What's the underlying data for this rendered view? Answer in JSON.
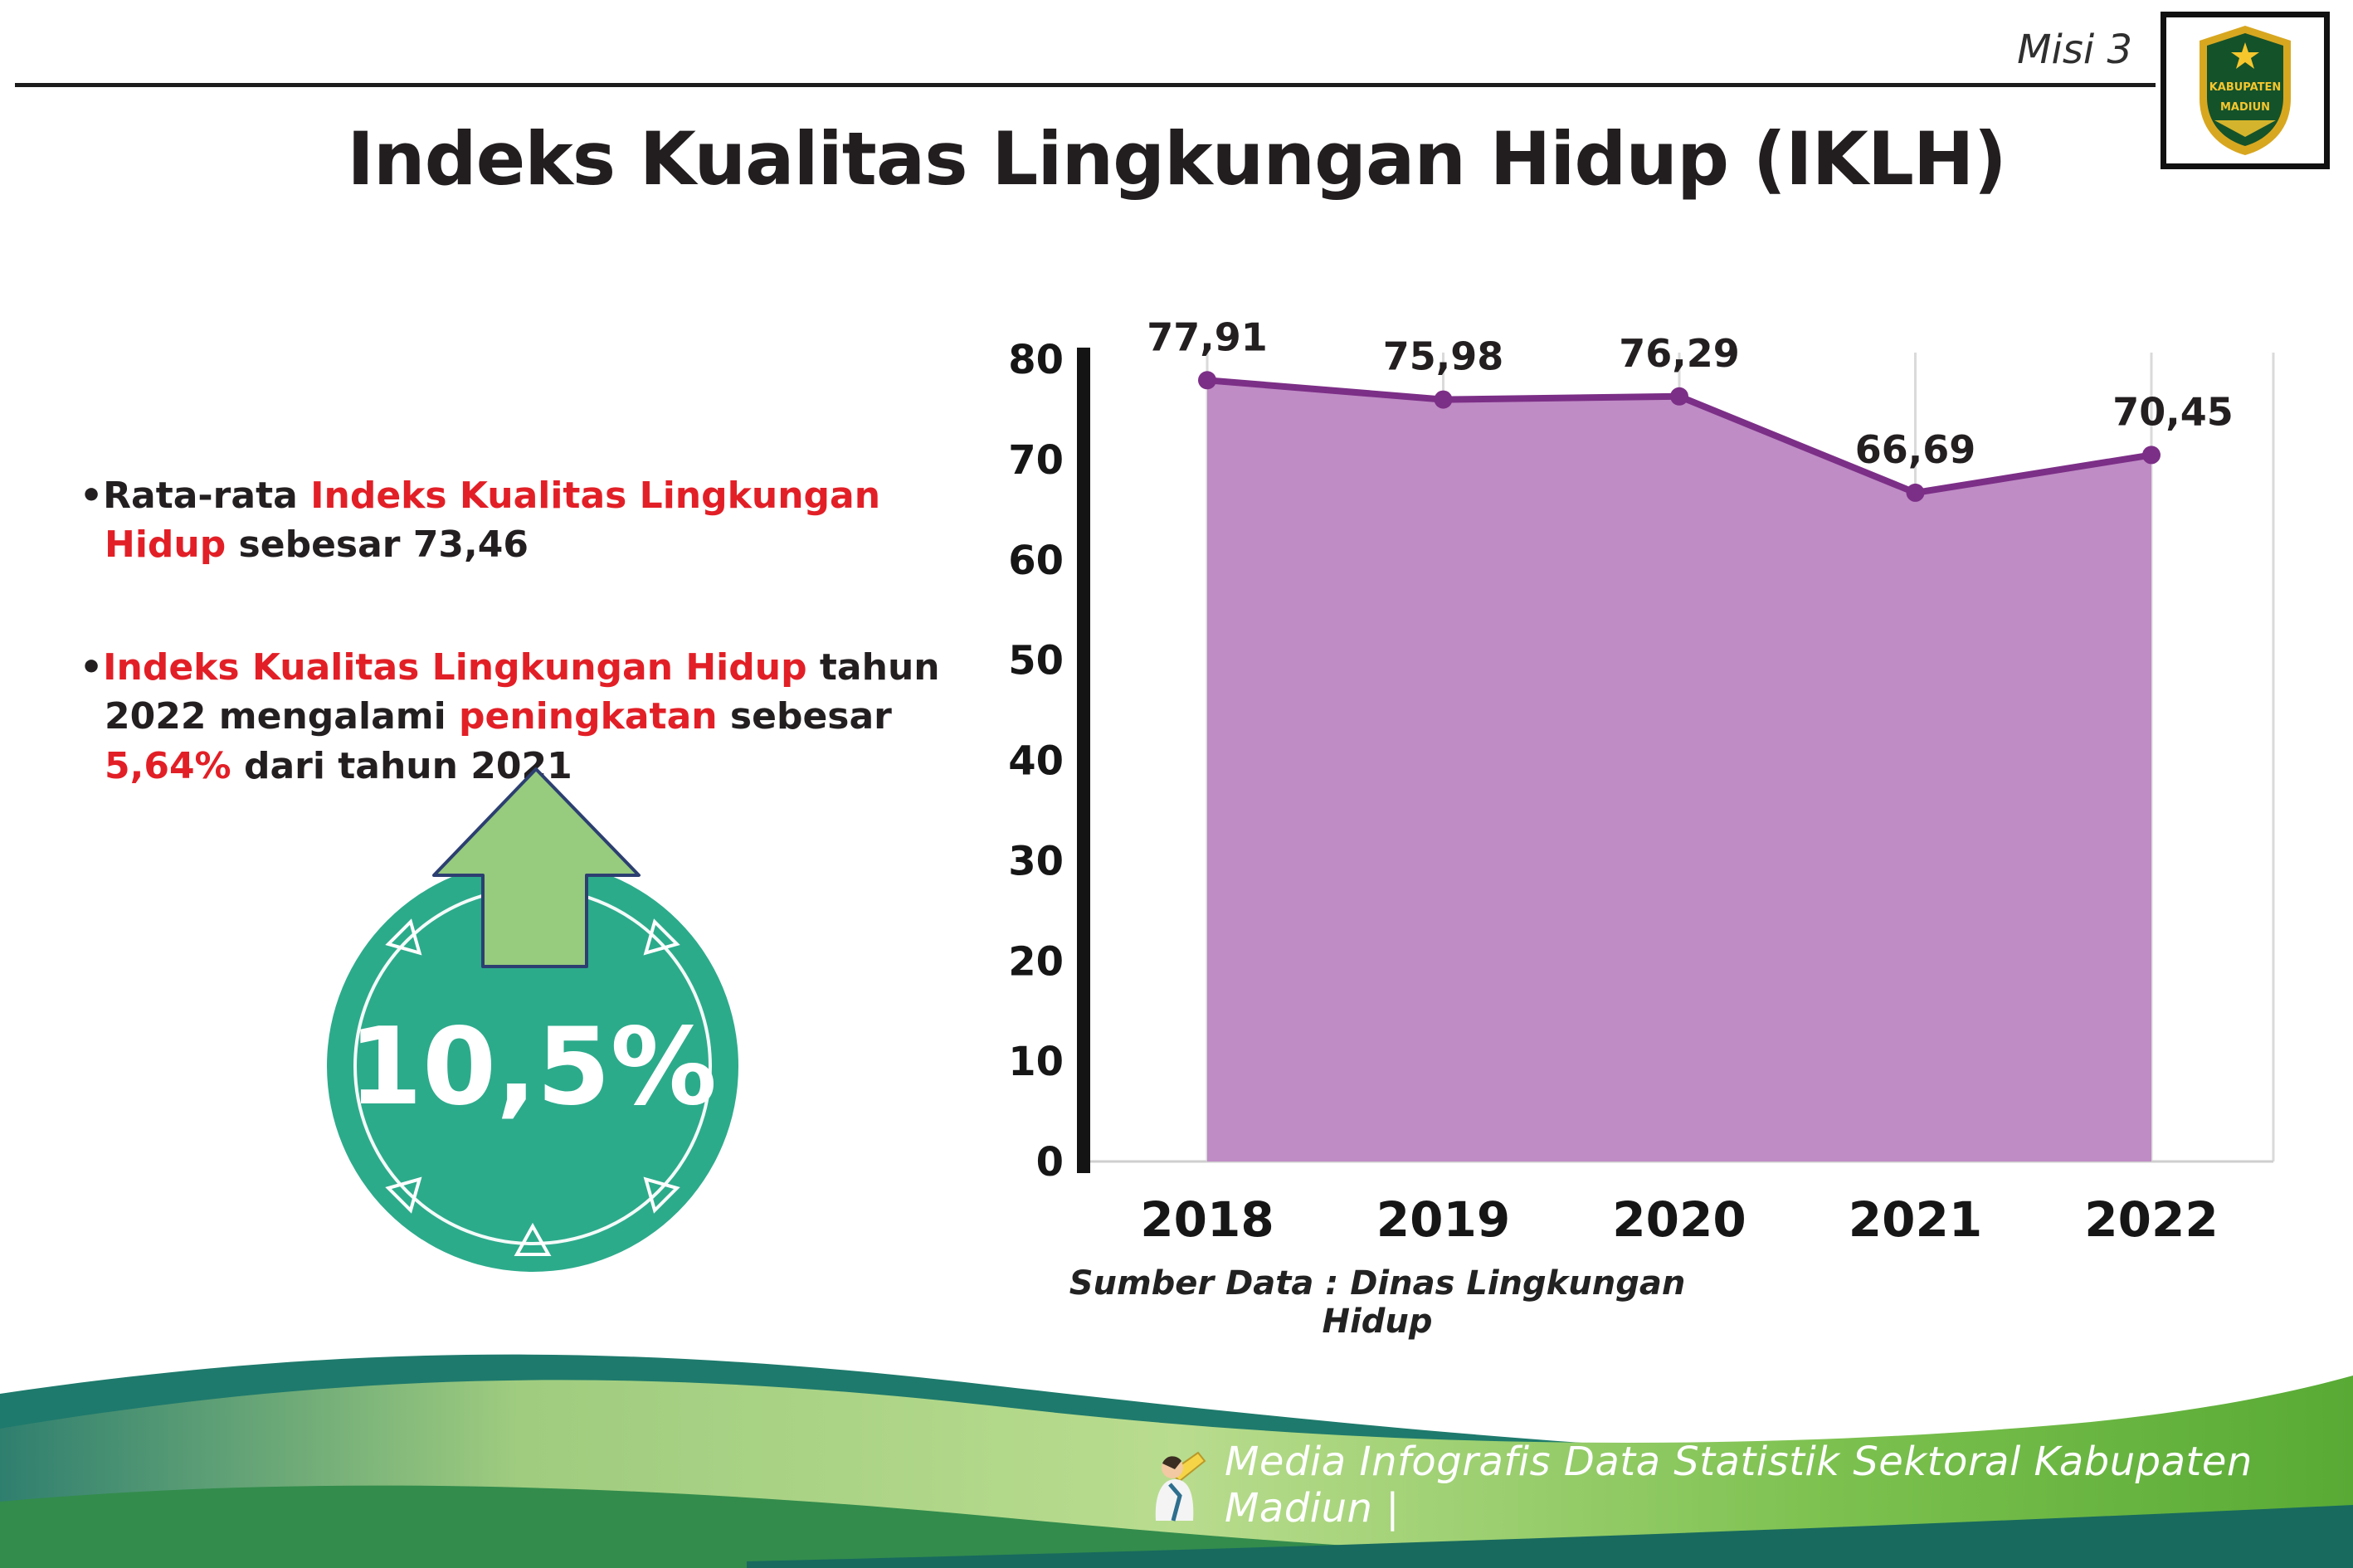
{
  "header": {
    "misi_label": "Misi 3",
    "title": "Indeks Kualitas Lingkungan Hidup (IKLH)",
    "logo": {
      "line1": "KABUPATEN",
      "line2": "MADIUN"
    }
  },
  "colors": {
    "highlight_red": "#e21f26",
    "badge_teal": "#2cab8b",
    "arrow_green": "#97cb7e",
    "chart_fill_purple": "#bf8cc5",
    "chart_line_purple": "#7c2f87"
  },
  "bullets": [
    {
      "parts": [
        {
          "t": "•Rata-rata ",
          "c": "dark"
        },
        {
          "t": "Indeks Kualitas Lingkungan Hidup",
          "c": "red"
        },
        {
          "t": " sebesar 73,46",
          "c": "dark"
        }
      ]
    },
    {
      "parts": [
        {
          "t": "•",
          "c": "dark"
        },
        {
          "t": "Indeks Kualitas Lingkungan Hidup",
          "c": "red"
        },
        {
          "t": " tahun 2022 mengalami ",
          "c": "dark"
        },
        {
          "t": "peningkatan",
          "c": "red"
        },
        {
          "t": " sebesar ",
          "c": "dark"
        },
        {
          "t": "5,64%",
          "c": "red"
        },
        {
          "t": " dari tahun 2021",
          "c": "dark"
        }
      ]
    }
  ],
  "badge": {
    "value": "10,5%"
  },
  "chart_data": {
    "type": "area",
    "title": "Indeks Kualitas Lingkungan Hidup (IKLH)",
    "categories": [
      "2018",
      "2019",
      "2020",
      "2021",
      "2022"
    ],
    "values": [
      77.91,
      75.98,
      76.29,
      66.69,
      70.45
    ],
    "value_labels": [
      "77,91",
      "75,98",
      "76,29",
      "66,69",
      "70,45"
    ],
    "ylim": [
      0,
      80
    ],
    "yticks": [
      0,
      10,
      20,
      30,
      40,
      50,
      60,
      70,
      80
    ],
    "grid": "vertical",
    "legend": "none",
    "fill_color": "#bf8cc5",
    "line_color": "#7c2f87",
    "source": "Sumber Data : Dinas Lingkungan Hidup"
  },
  "footer": {
    "text": "Media Infografis Data Statistik Sektoral Kabupaten Madiun |"
  }
}
